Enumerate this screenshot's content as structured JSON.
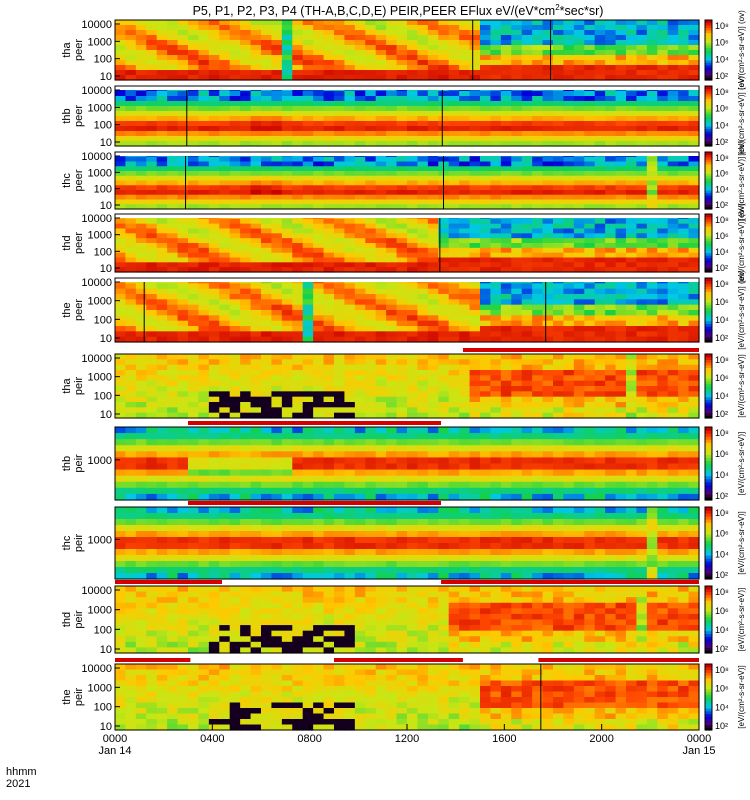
{
  "chart_data": {
    "type": "heatmap",
    "title": "P5, P1, P2, P3, P4 (TH-A,B,C,D,E) PEIR,PEER EFlux eV/(eV*cm²*sec*sr)",
    "title_prefix": "P5, P1, P2, P3, P4 (TH-A,B,C,D,E) PEIR,PEER EFlux eV/(eV*cm",
    "title_sup": "2",
    "title_suffix": "*sec*sr)",
    "x_axis": {
      "label_line1": "hhmm",
      "label_line2": "2021",
      "unit": "hours since 2021-01-14 00:00",
      "range": [
        0,
        24
      ],
      "ticks": [
        {
          "value": 0,
          "label": "0000",
          "sublabel": "Jan 14"
        },
        {
          "value": 4,
          "label": "0400",
          "sublabel": ""
        },
        {
          "value": 8,
          "label": "0800",
          "sublabel": ""
        },
        {
          "value": 12,
          "label": "1200",
          "sublabel": ""
        },
        {
          "value": 16,
          "label": "1600",
          "sublabel": ""
        },
        {
          "value": 20,
          "label": "2000",
          "sublabel": ""
        },
        {
          "value": 24,
          "label": "0000",
          "sublabel": "Jan 15"
        }
      ]
    },
    "colorbar_label_electron": "[eV/(cm²-s-sr-eV)] (ov)",
    "colorbar_label_ion": "[eV/(cm²-s-sr-eV)]",
    "colorbar_ticks": [
      "10²",
      "10⁴",
      "10⁶",
      "10⁸"
    ],
    "panels": [
      {
        "probe": "tha",
        "species": "peer",
        "ylabel_line1": "tha",
        "ylabel_line2": "peer",
        "yticks": [
          "10000",
          "1000",
          "100",
          "10"
        ],
        "top_bar": "none",
        "profile": "e_active",
        "gap": [
          7.0,
          7.3
        ],
        "quiet_after": 14.9,
        "lines": [
          14.7,
          17.9
        ]
      },
      {
        "probe": "thb",
        "species": "peer",
        "ylabel_line1": "thb",
        "ylabel_line2": "peer",
        "yticks": [
          "10000",
          "1000",
          "100",
          "10"
        ],
        "top_bar": "white",
        "profile": "e_quiet",
        "lines": [
          2.95,
          13.45
        ]
      },
      {
        "probe": "thc",
        "species": "peer",
        "ylabel_line1": "thc",
        "ylabel_line2": "peer",
        "yticks": [
          "10000",
          "1000",
          "100",
          "10"
        ],
        "top_bar": "white",
        "profile": "e_quiet",
        "lines": [
          2.9,
          13.5
        ],
        "event": 22.0
      },
      {
        "probe": "thd",
        "species": "peer",
        "ylabel_line1": "thd",
        "ylabel_line2": "peer",
        "yticks": [
          "10000",
          "1000",
          "100",
          "10"
        ],
        "top_bar": "white",
        "profile": "e_active",
        "gap": [
          6.7,
          7.0
        ],
        "quiet_after": 13.4,
        "lines": [
          13.35
        ]
      },
      {
        "probe": "the",
        "species": "peer",
        "ylabel_line1": "the",
        "ylabel_line2": "peer",
        "yticks": [
          "10000",
          "1000",
          "100",
          "10"
        ],
        "top_bar": "white",
        "profile": "e_active",
        "gap": [
          7.8,
          8.1
        ],
        "quiet_after": 15.0,
        "lines": [
          1.2,
          17.7
        ]
      },
      {
        "probe": "tha",
        "species": "peir",
        "ylabel_line1": "tha",
        "ylabel_line2": "peir",
        "yticks": [
          "10000",
          "1000",
          "100",
          "10"
        ],
        "top_bar_segments": [
          {
            "from": 0,
            "to": 14.3,
            "color": "#ffffff"
          },
          {
            "from": 14.3,
            "to": 24,
            "color": "#d40000"
          }
        ],
        "profile": "i_active",
        "quiet_after": 14.7,
        "event": 21.3
      },
      {
        "probe": "thb",
        "species": "peir",
        "ylabel_line1": "thb",
        "ylabel_line2": "peir",
        "yticks": [
          "1000"
        ],
        "top_bar_segments": [
          {
            "from": 0,
            "to": 3.0,
            "color": "#ffffff"
          },
          {
            "from": 3.0,
            "to": 13.4,
            "color": "#d40000"
          },
          {
            "from": 13.4,
            "to": 24,
            "color": "#ffffff"
          }
        ],
        "profile": "i_quiet",
        "disturb": [
          3.0,
          7.4
        ]
      },
      {
        "probe": "thc",
        "species": "peir",
        "ylabel_line1": "thc",
        "ylabel_line2": "peir",
        "yticks": [
          "1000"
        ],
        "top_bar_segments": [
          {
            "from": 0,
            "to": 3.0,
            "color": "#ffffff"
          },
          {
            "from": 3.0,
            "to": 13.4,
            "color": "#d40000"
          },
          {
            "from": 13.4,
            "to": 24,
            "color": "#ffffff"
          }
        ],
        "profile": "i_quiet",
        "event": 22.1
      },
      {
        "probe": "thd",
        "species": "peir",
        "ylabel_line1": "thd",
        "ylabel_line2": "peir",
        "yticks": [
          "10000",
          "1000",
          "100",
          "10"
        ],
        "top_bar_segments": [
          {
            "from": 0,
            "to": 4.4,
            "color": "#d40000"
          },
          {
            "from": 4.4,
            "to": 13.4,
            "color": "#ffffff"
          },
          {
            "from": 13.4,
            "to": 24,
            "color": "#d40000"
          }
        ],
        "profile": "i_active",
        "quiet_after": 13.6,
        "event": 21.5
      },
      {
        "probe": "the",
        "species": "peir",
        "ylabel_line1": "the",
        "ylabel_line2": "peir",
        "yticks": [
          "10000",
          "1000",
          "100",
          "10"
        ],
        "top_bar_segments": [
          {
            "from": 0,
            "to": 3.1,
            "color": "#d40000"
          },
          {
            "from": 3.1,
            "to": 9.0,
            "color": "#ffffff"
          },
          {
            "from": 9.0,
            "to": 14.3,
            "color": "#d40000"
          },
          {
            "from": 14.3,
            "to": 17.4,
            "color": "#ffffff"
          },
          {
            "from": 17.4,
            "to": 24,
            "color": "#d40000"
          }
        ],
        "profile": "i_active",
        "quiet_after": 14.8,
        "lines": [
          17.5
        ]
      }
    ]
  }
}
